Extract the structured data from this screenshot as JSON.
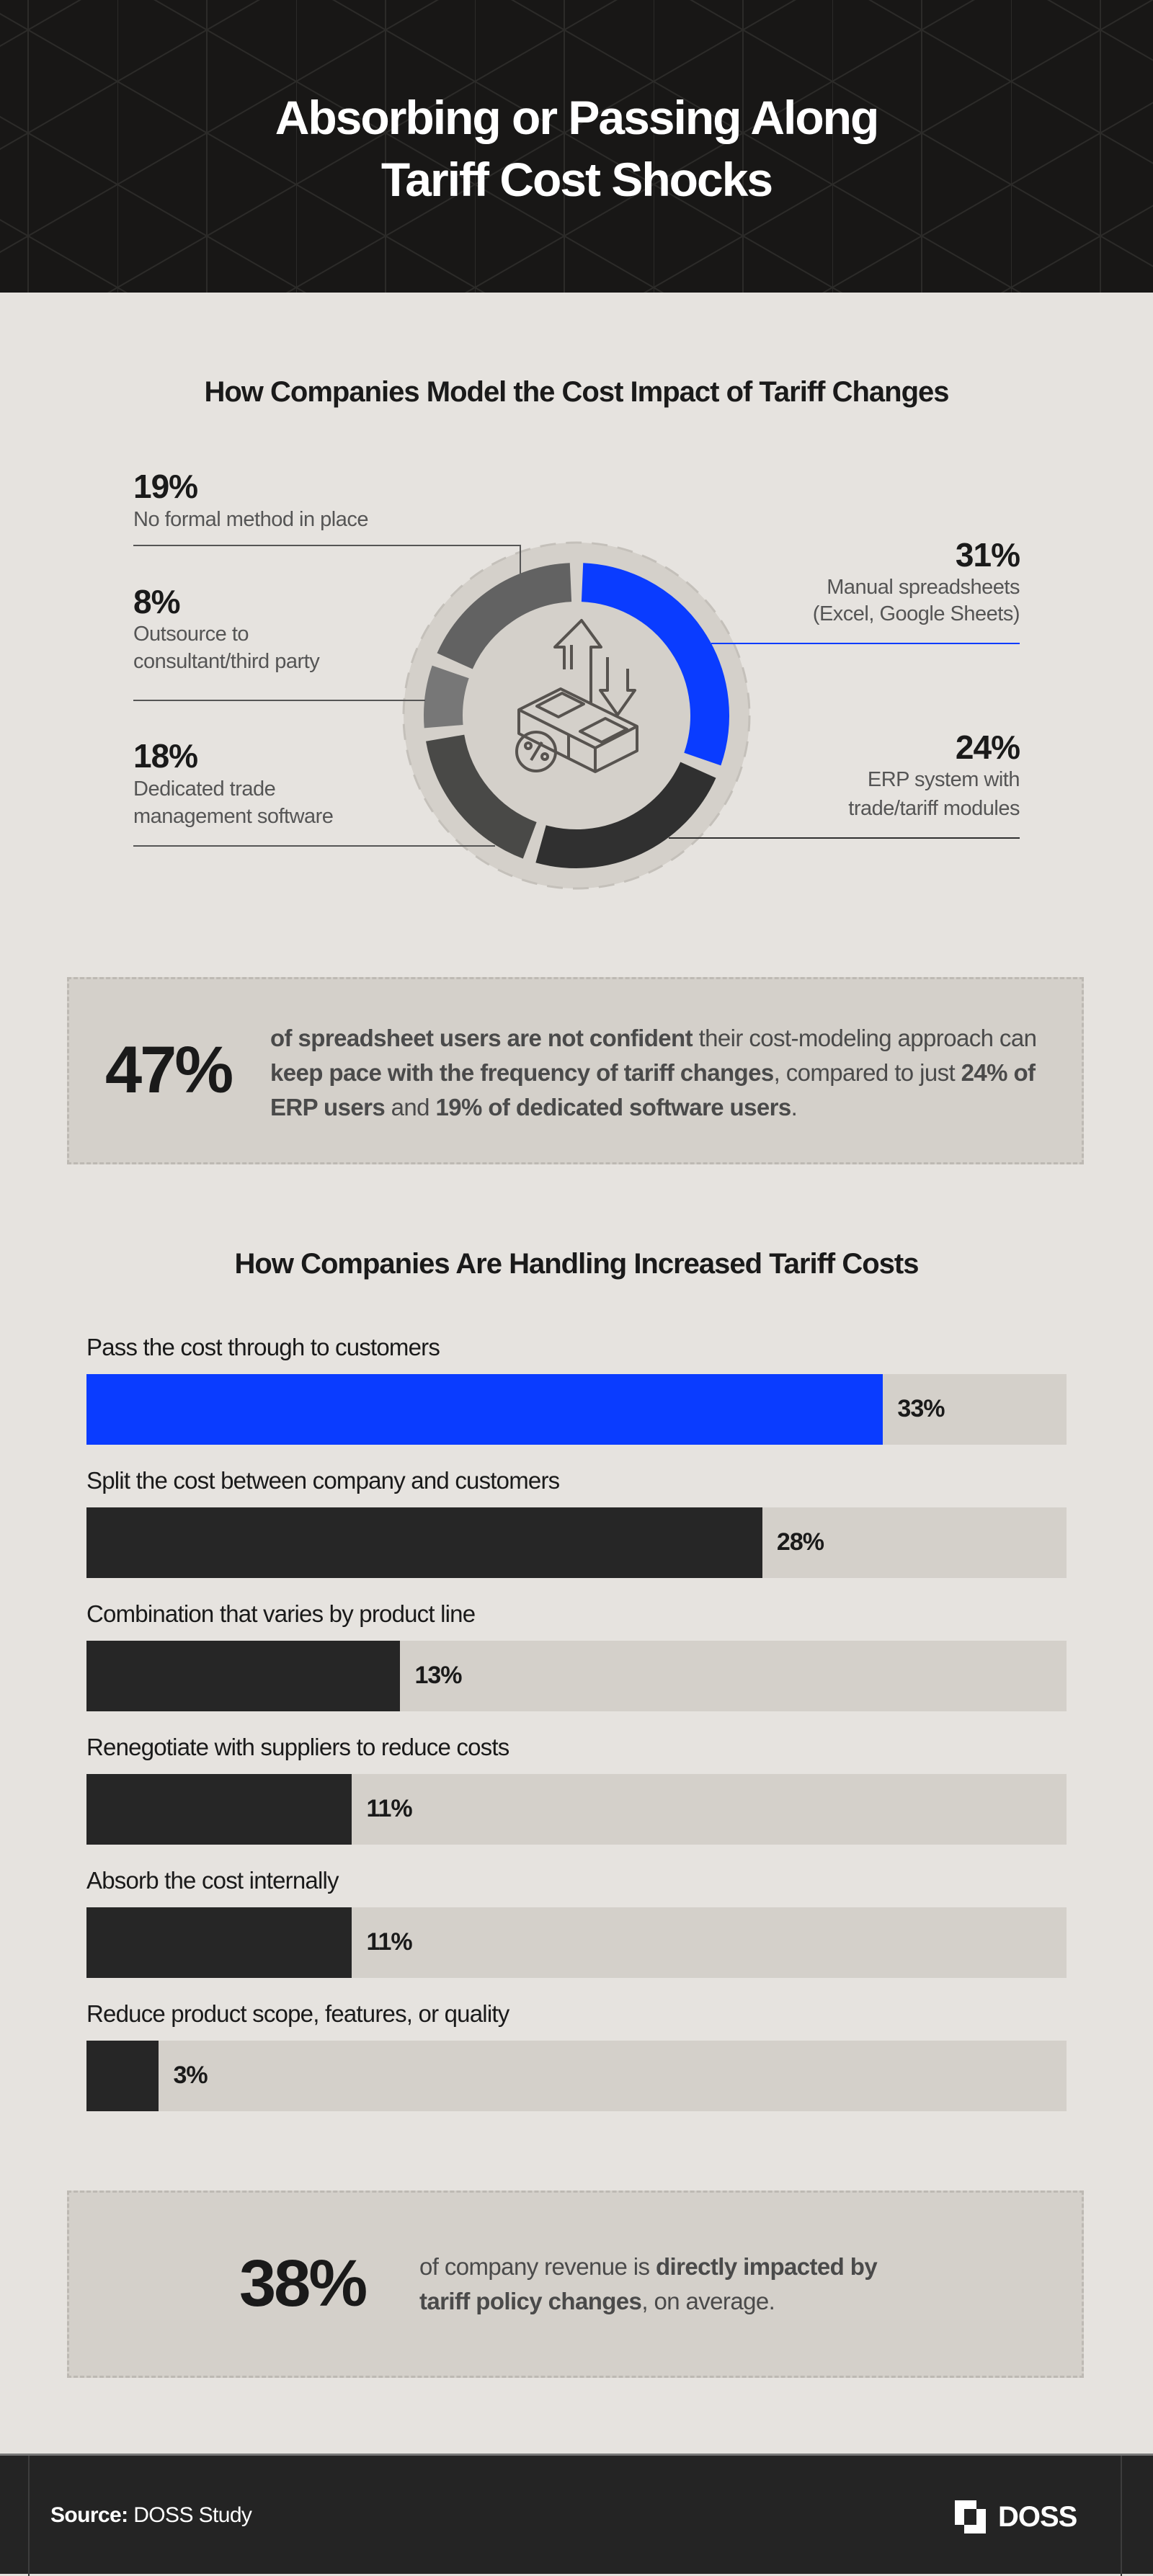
{
  "header": {
    "title_line1": "Absorbing or Passing Along",
    "title_line2": "Tariff Cost Shocks"
  },
  "colors": {
    "accent": "#0a3cff",
    "dark": "#262626",
    "track": "#d4d0ca",
    "background": "#e6e3df",
    "header": "#181716"
  },
  "chart_data": [
    {
      "type": "pie",
      "variant": "donut",
      "title": "How Companies Model the Cost Impact of Tariff Changes",
      "center_icon": "money-stack-percent-icon",
      "slices": [
        {
          "pct": "31%",
          "value": 31,
          "label_lines": [
            "Manual spreadsheets",
            "(Excel, Google Sheets)"
          ],
          "color": "#0a3cff"
        },
        {
          "pct": "24%",
          "value": 24,
          "label_lines": [
            "ERP system with",
            "trade/tariff modules"
          ],
          "color": "#303030"
        },
        {
          "pct": "18%",
          "value": 18,
          "label_lines": [
            "Dedicated trade",
            "management software"
          ],
          "color": "#494947"
        },
        {
          "pct": "8%",
          "value": 8,
          "label_lines": [
            "Outsource to",
            "consultant/third party"
          ],
          "color": "#777777"
        },
        {
          "pct": "19%",
          "value": 19,
          "label_lines": [
            "No formal method in place"
          ],
          "color": "#626262"
        }
      ]
    },
    {
      "type": "bar",
      "orientation": "horizontal",
      "title": "How Companies Are Handling Increased Tariff Costs",
      "xlim": [
        0,
        40.6
      ],
      "categories": [
        "Pass the cost through to customers",
        "Split the cost between company and customers",
        "Combination that varies by product line",
        "Renegotiate with suppliers to reduce costs",
        "Absorb the cost internally",
        "Reduce product scope, features, or quality"
      ],
      "values": [
        33,
        28,
        13,
        11,
        11,
        3
      ],
      "value_labels": [
        "33%",
        "28%",
        "13%",
        "11%",
        "11%",
        "3%"
      ],
      "colors": [
        "#0a3cff",
        "#262626",
        "#262626",
        "#262626",
        "#262626",
        "#262626"
      ]
    }
  ],
  "callout1": {
    "stat": "47%",
    "parts": [
      {
        "b": true,
        "t": "of spreadsheet users are not confident"
      },
      {
        "b": false,
        "t": " their cost-modeling approach can "
      },
      {
        "b": true,
        "t": "keep pace with the frequency of tariff changes"
      },
      {
        "b": false,
        "t": ", compared to just "
      },
      {
        "b": true,
        "t": "24% of ERP users"
      },
      {
        "b": false,
        "t": " and "
      },
      {
        "b": true,
        "t": "19% of dedicated software users"
      },
      {
        "b": false,
        "t": "."
      }
    ]
  },
  "callout2": {
    "stat": "38%",
    "parts": [
      {
        "b": false,
        "t": "of company revenue is "
      },
      {
        "b": true,
        "t": "directly impacted by tariff policy changes"
      },
      {
        "b": false,
        "t": ", on average."
      }
    ]
  },
  "footer": {
    "source_label": "Source:",
    "source_value": " DOSS Study",
    "logo_text": "DOSS"
  }
}
